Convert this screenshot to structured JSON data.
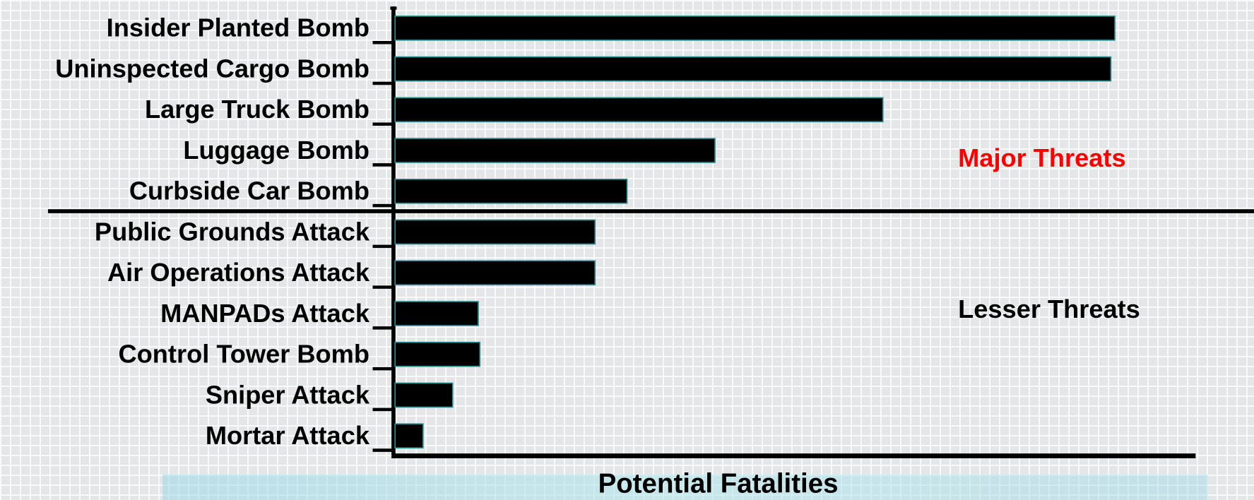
{
  "chart_data": {
    "type": "barh",
    "categories": [
      "Insider Planted Bomb",
      "Uninspected Cargo Bomb",
      "Large Truck Bomb",
      "Luggage Bomb",
      "Curbside Car Bomb",
      "Public Grounds Attack",
      "Air Operations Attack",
      "MANPADs Attack",
      "Control Tower Bomb",
      "Sniper Attack",
      "Mortar Attack"
    ],
    "values": [
      90,
      89.5,
      61,
      40,
      29,
      25,
      25,
      10.4,
      10.6,
      7.2,
      3.5
    ],
    "color": "#000000",
    "xlim": [
      0,
      100
    ],
    "x_label": "Potential Fatalities",
    "annotations": [
      {
        "text": "Major Threats",
        "color": "#ff0000"
      },
      {
        "text": "Lesser Threats",
        "color": "#000000"
      }
    ]
  }
}
